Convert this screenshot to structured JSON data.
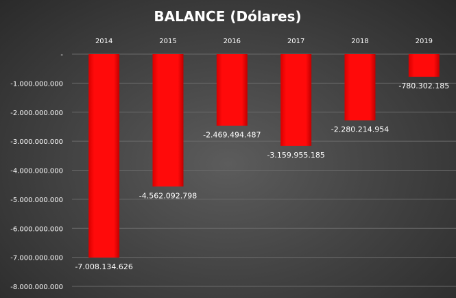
{
  "chart_data": {
    "type": "bar",
    "title": "BALANCE (Dólares)",
    "categories": [
      "2014",
      "2015",
      "2016",
      "2017",
      "2018",
      "2019"
    ],
    "values": [
      -7008134626,
      -4562092798,
      -2469494487,
      -3159955185,
      -2280214954,
      -780302185
    ],
    "value_labels": [
      "-7.008.134.626",
      "-4.562.092.798",
      "-2.469.494.487",
      "-3.159.955.185",
      "-2.280.214.954",
      "-780.302.185"
    ],
    "ylim": [
      -8000000000,
      0
    ],
    "y_ticks": [
      0,
      -1000000000,
      -2000000000,
      -3000000000,
      -4000000000,
      -5000000000,
      -6000000000,
      -7000000000,
      -8000000000
    ],
    "y_tick_labels": [
      "-",
      "-1.000.000.000",
      "-2.000.000.000",
      "-3.000.000.000",
      "-4.000.000.000",
      "-5.000.000.000",
      "-6.000.000.000",
      "-7.000.000.000",
      "-8.000.000.000"
    ],
    "category_axis_position": "top",
    "grid": true,
    "legend": "none",
    "bar_color": "#ff0000",
    "background_color": "#444444"
  }
}
